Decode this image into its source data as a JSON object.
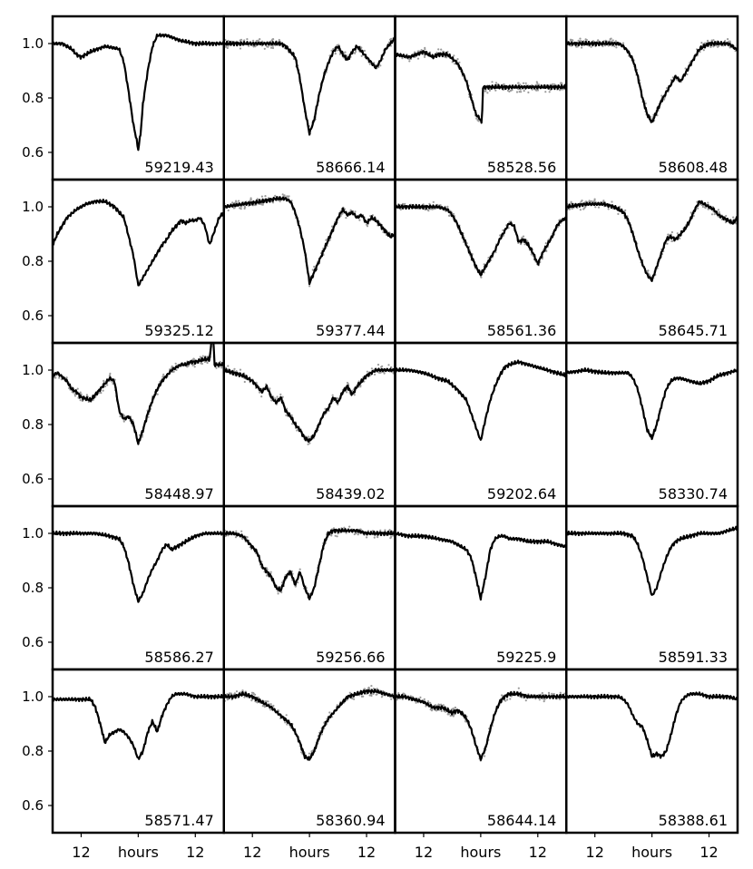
{
  "figure": {
    "xlabel_center": "hours",
    "xtick_side_label": "12",
    "ytick_labels": [
      "1.0",
      "0.8",
      "0.6"
    ]
  },
  "chart_data": {
    "type": "line",
    "grid": false,
    "rows": 5,
    "cols": 4,
    "xlabel": "hours",
    "xlim": [
      -18,
      18
    ],
    "xticks": [
      -12,
      0,
      12
    ],
    "xtick_labels": [
      "12",
      "hours",
      "12"
    ],
    "ylim": [
      0.5,
      1.1
    ],
    "yticks": [
      1.0,
      0.8,
      0.6
    ],
    "panels": [
      {
        "label": "59219.43",
        "scatter": false,
        "t": [
          -18,
          -16,
          -14,
          -13,
          -12,
          -10,
          -7,
          -4,
          -3,
          -2,
          -1,
          -0.5,
          0,
          0.5,
          1,
          2,
          3,
          4,
          6,
          9,
          12,
          15,
          18
        ],
        "y": [
          1.0,
          1.0,
          0.98,
          0.96,
          0.95,
          0.97,
          0.99,
          0.98,
          0.93,
          0.82,
          0.7,
          0.66,
          0.61,
          0.67,
          0.78,
          0.9,
          0.99,
          1.03,
          1.03,
          1.01,
          1.0,
          1.0,
          1.0
        ]
      },
      {
        "label": "58666.14",
        "scatter": true,
        "t": [
          -18,
          -14,
          -10,
          -8,
          -6,
          -5,
          -4,
          -3,
          -2,
          -1,
          0,
          1,
          2,
          3,
          4,
          5,
          6,
          7,
          8,
          9,
          10,
          11,
          12,
          13,
          14,
          15,
          16,
          18
        ],
        "y": [
          1.0,
          1.0,
          1.0,
          1.0,
          1.0,
          0.99,
          0.97,
          0.95,
          0.87,
          0.76,
          0.67,
          0.72,
          0.81,
          0.88,
          0.93,
          0.97,
          0.99,
          0.96,
          0.94,
          0.97,
          0.99,
          0.97,
          0.95,
          0.93,
          0.91,
          0.94,
          0.98,
          1.02
        ]
      },
      {
        "label": "58528.56",
        "scatter": true,
        "t": [
          -18,
          -15,
          -12,
          -10,
          -9,
          -7,
          -5,
          -4,
          -3,
          -2,
          -1,
          0,
          0.2,
          0.5,
          1,
          18
        ],
        "y": [
          0.96,
          0.95,
          0.97,
          0.95,
          0.96,
          0.96,
          0.93,
          0.9,
          0.86,
          0.8,
          0.74,
          0.72,
          0.7,
          0.84,
          0.84,
          0.84
        ]
      },
      {
        "label": "58608.48",
        "scatter": true,
        "t": [
          -18,
          -14,
          -10,
          -7,
          -6,
          -5,
          -4,
          -3,
          -2,
          -1,
          0,
          1,
          2,
          3,
          4,
          5,
          6,
          7,
          8,
          9,
          10,
          12,
          14,
          16,
          17,
          17.5,
          18
        ],
        "y": [
          1.0,
          1.0,
          1.0,
          1.0,
          0.99,
          0.97,
          0.94,
          0.88,
          0.8,
          0.74,
          0.71,
          0.75,
          0.79,
          0.82,
          0.85,
          0.88,
          0.86,
          0.89,
          0.92,
          0.95,
          0.98,
          1.0,
          1.0,
          1.0,
          0.99,
          0.98,
          0.98
        ]
      },
      {
        "label": "59325.12",
        "scatter": false,
        "t": [
          -18,
          -17,
          -15,
          -13,
          -11,
          -9,
          -7,
          -5,
          -3,
          -1,
          0,
          1,
          2,
          3,
          4,
          5,
          6,
          7,
          8,
          9,
          10,
          11,
          12,
          13,
          14,
          15,
          16,
          17,
          18
        ],
        "y": [
          0.86,
          0.9,
          0.96,
          0.99,
          1.01,
          1.02,
          1.02,
          1.0,
          0.96,
          0.82,
          0.71,
          0.74,
          0.77,
          0.8,
          0.83,
          0.86,
          0.88,
          0.91,
          0.93,
          0.95,
          0.94,
          0.95,
          0.95,
          0.96,
          0.93,
          0.86,
          0.91,
          0.96,
          0.98
        ]
      },
      {
        "label": "59377.44",
        "scatter": true,
        "t": [
          -18,
          -14,
          -10,
          -7,
          -5,
          -4,
          -3,
          -2,
          -1,
          0,
          1,
          2,
          3,
          4,
          5,
          6,
          7,
          8,
          9,
          10,
          11,
          12,
          13,
          14,
          15,
          16,
          17,
          18
        ],
        "y": [
          1.0,
          1.01,
          1.02,
          1.03,
          1.03,
          1.02,
          0.98,
          0.92,
          0.84,
          0.72,
          0.76,
          0.8,
          0.84,
          0.88,
          0.92,
          0.96,
          0.99,
          0.97,
          0.98,
          0.96,
          0.97,
          0.94,
          0.96,
          0.95,
          0.93,
          0.91,
          0.89,
          0.9
        ]
      },
      {
        "label": "58561.36",
        "scatter": true,
        "t": [
          -18,
          -15,
          -12,
          -9,
          -7,
          -6,
          -5,
          -4,
          -3,
          -2,
          -1,
          0,
          1,
          2,
          3,
          4,
          5,
          6,
          7,
          8,
          9,
          10,
          11,
          12,
          13,
          14,
          15,
          16,
          17,
          18
        ],
        "y": [
          1.0,
          1.0,
          1.0,
          1.0,
          0.99,
          0.97,
          0.94,
          0.9,
          0.86,
          0.82,
          0.78,
          0.75,
          0.78,
          0.81,
          0.84,
          0.88,
          0.91,
          0.94,
          0.93,
          0.87,
          0.88,
          0.86,
          0.83,
          0.79,
          0.83,
          0.86,
          0.89,
          0.93,
          0.95,
          0.96
        ]
      },
      {
        "label": "58645.71",
        "scatter": true,
        "t": [
          -18,
          -14,
          -10,
          -8,
          -6,
          -5,
          -4,
          -3,
          -2,
          -1,
          0,
          1,
          2,
          3,
          4,
          5,
          6,
          7,
          8,
          9,
          10,
          11,
          12,
          13,
          14,
          15,
          16,
          17,
          18
        ],
        "y": [
          1.0,
          1.01,
          1.01,
          1.0,
          0.98,
          0.95,
          0.9,
          0.84,
          0.79,
          0.75,
          0.73,
          0.78,
          0.83,
          0.88,
          0.89,
          0.88,
          0.9,
          0.92,
          0.95,
          0.99,
          1.02,
          1.01,
          1.0,
          0.99,
          0.97,
          0.96,
          0.95,
          0.94,
          0.96
        ]
      },
      {
        "label": "58448.97",
        "scatter": true,
        "t": [
          -18,
          -17,
          -15,
          -14,
          -13,
          -12,
          -10,
          -9,
          -8,
          -6,
          -5,
          -4,
          -3,
          -2,
          -1,
          0,
          1,
          2,
          3,
          4,
          5,
          6,
          7,
          8,
          9,
          10,
          11,
          12,
          14,
          15,
          15.5,
          15.8,
          16,
          18
        ],
        "y": [
          0.98,
          0.99,
          0.96,
          0.93,
          0.92,
          0.9,
          0.89,
          0.91,
          0.93,
          0.97,
          0.96,
          0.85,
          0.82,
          0.83,
          0.8,
          0.73,
          0.78,
          0.84,
          0.89,
          0.93,
          0.96,
          0.98,
          1.0,
          1.01,
          1.02,
          1.02,
          1.03,
          1.03,
          1.04,
          1.04,
          1.12,
          1.12,
          1.02,
          1.02
        ]
      },
      {
        "label": "58439.02",
        "scatter": true,
        "t": [
          -18,
          -16,
          -14,
          -12,
          -10,
          -9,
          -8,
          -7,
          -6,
          -5,
          -4,
          -3,
          -2,
          -1,
          0,
          1,
          2,
          3,
          4,
          5,
          6,
          7,
          8,
          9,
          10,
          11,
          12,
          13,
          14,
          16,
          18
        ],
        "y": [
          1.0,
          0.99,
          0.98,
          0.96,
          0.92,
          0.94,
          0.9,
          0.88,
          0.9,
          0.85,
          0.83,
          0.8,
          0.78,
          0.75,
          0.74,
          0.76,
          0.8,
          0.84,
          0.86,
          0.9,
          0.88,
          0.92,
          0.94,
          0.91,
          0.94,
          0.96,
          0.98,
          0.99,
          1.0,
          1.0,
          1.0
        ]
      },
      {
        "label": "59202.64",
        "scatter": false,
        "t": [
          -18,
          -15,
          -12,
          -9,
          -7,
          -5,
          -3,
          -2,
          -1,
          0,
          1,
          2,
          3,
          4,
          5,
          6,
          8,
          10,
          12,
          14,
          16,
          18
        ],
        "y": [
          1.0,
          1.0,
          0.99,
          0.97,
          0.96,
          0.93,
          0.89,
          0.84,
          0.79,
          0.74,
          0.82,
          0.89,
          0.94,
          0.98,
          1.01,
          1.02,
          1.03,
          1.02,
          1.01,
          1.0,
          0.99,
          0.98
        ]
      },
      {
        "label": "58330.74",
        "scatter": false,
        "t": [
          -18,
          -14,
          -10,
          -7,
          -5,
          -4,
          -3,
          -2,
          -1,
          0,
          1,
          2,
          3,
          4,
          5,
          6,
          8,
          10,
          12,
          13,
          14,
          16,
          18
        ],
        "y": [
          0.99,
          1.0,
          0.99,
          0.99,
          0.99,
          0.97,
          0.93,
          0.86,
          0.78,
          0.75,
          0.8,
          0.87,
          0.93,
          0.96,
          0.97,
          0.97,
          0.96,
          0.95,
          0.96,
          0.97,
          0.98,
          0.99,
          1.0
        ]
      },
      {
        "label": "58586.27",
        "scatter": false,
        "t": [
          -18,
          -15,
          -12,
          -9,
          -6,
          -4,
          -3,
          -2,
          -1,
          0,
          1,
          2,
          3,
          4,
          5,
          6,
          7,
          8,
          10,
          12,
          14,
          16,
          18
        ],
        "y": [
          1.0,
          1.0,
          1.0,
          1.0,
          0.99,
          0.98,
          0.95,
          0.89,
          0.81,
          0.75,
          0.78,
          0.83,
          0.87,
          0.9,
          0.94,
          0.96,
          0.94,
          0.95,
          0.97,
          0.99,
          1.0,
          1.0,
          1.0
        ]
      },
      {
        "label": "59256.66",
        "scatter": true,
        "t": [
          -18,
          -16,
          -14,
          -13,
          -11,
          -10,
          -8,
          -7,
          -6,
          -5,
          -4,
          -3,
          -2,
          -1,
          0,
          1,
          2,
          3,
          4,
          5,
          6,
          8,
          10,
          12,
          14,
          16,
          18
        ],
        "y": [
          1.0,
          1.0,
          0.99,
          0.97,
          0.93,
          0.88,
          0.84,
          0.8,
          0.79,
          0.84,
          0.86,
          0.81,
          0.86,
          0.8,
          0.76,
          0.8,
          0.88,
          0.96,
          1.0,
          1.01,
          1.01,
          1.01,
          1.01,
          1.0,
          1.0,
          1.0,
          1.0
        ]
      },
      {
        "label": "59225.9",
        "scatter": false,
        "t": [
          -18,
          -15,
          -12,
          -9,
          -6,
          -5,
          -4,
          -3,
          -2,
          -1,
          0,
          1,
          2,
          3,
          4,
          5,
          6,
          8,
          10,
          12,
          14,
          16,
          18
        ],
        "y": [
          1.0,
          0.99,
          0.99,
          0.98,
          0.97,
          0.96,
          0.95,
          0.94,
          0.91,
          0.84,
          0.76,
          0.84,
          0.94,
          0.98,
          0.99,
          0.99,
          0.98,
          0.98,
          0.97,
          0.97,
          0.97,
          0.96,
          0.95
        ]
      },
      {
        "label": "58591.33",
        "scatter": false,
        "t": [
          -18,
          -15,
          -12,
          -9,
          -6,
          -4,
          -3,
          -2,
          -1,
          0,
          1,
          2,
          3,
          4,
          5,
          6,
          8,
          10,
          12,
          14,
          16,
          18
        ],
        "y": [
          1.0,
          1.0,
          1.0,
          1.0,
          1.0,
          0.99,
          0.96,
          0.91,
          0.84,
          0.77,
          0.8,
          0.86,
          0.91,
          0.95,
          0.97,
          0.98,
          0.99,
          1.0,
          1.0,
          1.0,
          1.01,
          1.02
        ]
      },
      {
        "label": "58571.47",
        "scatter": false,
        "t": [
          -18,
          -12,
          -10,
          -9,
          -8,
          -7,
          -6,
          -5,
          -4,
          -3,
          -2,
          -1,
          0,
          1,
          2,
          3,
          4,
          5,
          6,
          7,
          8,
          9,
          10,
          12,
          14,
          16,
          18
        ],
        "y": [
          0.99,
          0.99,
          0.99,
          0.96,
          0.9,
          0.83,
          0.86,
          0.87,
          0.88,
          0.87,
          0.85,
          0.82,
          0.77,
          0.8,
          0.87,
          0.91,
          0.87,
          0.93,
          0.97,
          1.0,
          1.01,
          1.01,
          1.01,
          1.0,
          1.0,
          1.0,
          1.0
        ]
      },
      {
        "label": "58360.94",
        "scatter": true,
        "t": [
          -18,
          -16,
          -14,
          -12,
          -10,
          -8,
          -6,
          -4,
          -3,
          -2,
          -1,
          0,
          1,
          2,
          3,
          4,
          5,
          6,
          7,
          8,
          10,
          12,
          14,
          16,
          18
        ],
        "y": [
          1.0,
          1.0,
          1.01,
          1.0,
          0.98,
          0.96,
          0.93,
          0.9,
          0.87,
          0.83,
          0.78,
          0.77,
          0.8,
          0.85,
          0.89,
          0.92,
          0.94,
          0.96,
          0.98,
          1.0,
          1.01,
          1.02,
          1.02,
          1.01,
          1.0
        ]
      },
      {
        "label": "58644.14",
        "scatter": true,
        "t": [
          -18,
          -16,
          -14,
          -12,
          -10,
          -8,
          -7,
          -6,
          -5,
          -4,
          -3,
          -2,
          -1,
          0,
          1,
          2,
          3,
          4,
          5,
          6,
          8,
          10,
          12,
          14,
          16,
          18
        ],
        "y": [
          1.0,
          1.0,
          0.99,
          0.98,
          0.96,
          0.96,
          0.95,
          0.94,
          0.95,
          0.94,
          0.92,
          0.88,
          0.82,
          0.77,
          0.81,
          0.88,
          0.94,
          0.98,
          1.0,
          1.01,
          1.01,
          1.0,
          1.0,
          1.0,
          1.0,
          1.0
        ]
      },
      {
        "label": "58388.61",
        "scatter": false,
        "t": [
          -18,
          -15,
          -12,
          -9,
          -7,
          -6,
          -5,
          -4,
          -3,
          -2,
          -1,
          0,
          1,
          2,
          3,
          4,
          5,
          6,
          7,
          8,
          10,
          12,
          14,
          16,
          18
        ],
        "y": [
          1.0,
          1.0,
          1.0,
          1.0,
          1.0,
          0.99,
          0.97,
          0.93,
          0.9,
          0.89,
          0.84,
          0.78,
          0.79,
          0.78,
          0.8,
          0.86,
          0.93,
          0.98,
          1.0,
          1.01,
          1.01,
          1.0,
          1.0,
          1.0,
          0.99
        ]
      }
    ]
  }
}
